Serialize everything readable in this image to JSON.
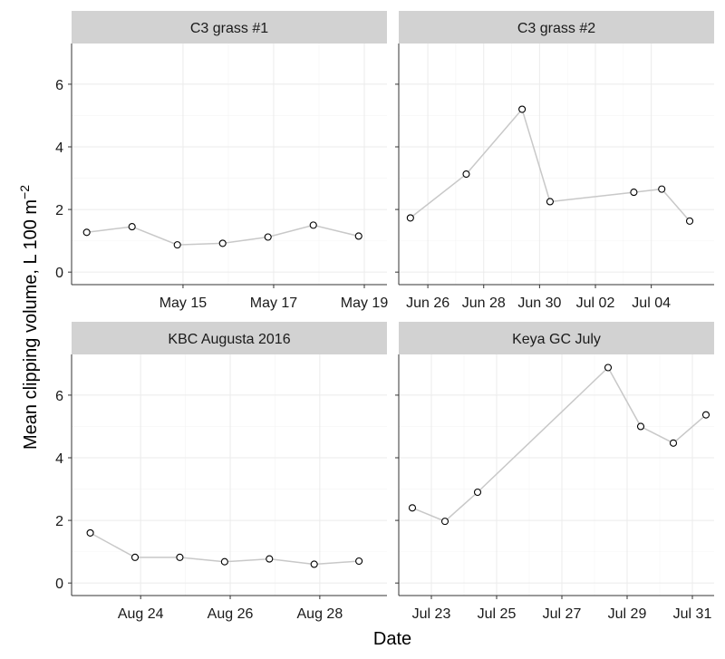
{
  "figure": {
    "ylabel_main": "Mean clipping volume, L 100 m",
    "ylabel_sup": "−2",
    "xlabel": "Date"
  },
  "style": {
    "strip_fill": "#d2d2d2",
    "line_color": "#c8c8c8",
    "grid_major": "#ebebeb",
    "grid_minor": "#f4f4f4",
    "marker_stroke": "#000000",
    "marker_fill": "#ffffff"
  },
  "chart_data": [
    {
      "type": "line",
      "title": "C3 grass #1",
      "x_type": "date",
      "xlim": [
        "2016-05-12T13:00",
        "2016-05-19T12:00"
      ],
      "ylim": [
        -0.4,
        7.3
      ],
      "yticks": [
        0,
        2,
        4,
        6
      ],
      "xticks": [
        {
          "date": "2016-05-15",
          "label": "May 15"
        },
        {
          "date": "2016-05-17",
          "label": "May 17"
        },
        {
          "date": "2016-05-19",
          "label": "May 19"
        }
      ],
      "x": [
        "2016-05-12T21:00",
        "2016-05-13T21:00",
        "2016-05-14T21:00",
        "2016-05-15T21:00",
        "2016-05-16T21:00",
        "2016-05-17T21:00",
        "2016-05-18T21:00"
      ],
      "values": [
        1.27,
        1.45,
        0.87,
        0.92,
        1.12,
        1.5,
        1.15
      ]
    },
    {
      "type": "line",
      "title": "C3 grass #2",
      "x_type": "date",
      "xlim": [
        "2016-06-24T23:00",
        "2016-07-06T06:00"
      ],
      "ylim": [
        -0.4,
        7.3
      ],
      "yticks": [
        0,
        2,
        4,
        6
      ],
      "xticks": [
        {
          "date": "2016-06-26",
          "label": "Jun 26"
        },
        {
          "date": "2016-06-28",
          "label": "Jun 28"
        },
        {
          "date": "2016-06-30",
          "label": "Jun 30"
        },
        {
          "date": "2016-07-02",
          "label": "Jul 02"
        },
        {
          "date": "2016-07-04",
          "label": "Jul 04"
        }
      ],
      "x": [
        "2016-06-25T09:00",
        "2016-06-27T09:00",
        "2016-06-29T09:00",
        "2016-06-30T09:00",
        "2016-07-03T09:00",
        "2016-07-04T09:00",
        "2016-07-05T09:00"
      ],
      "values": [
        1.73,
        3.13,
        5.2,
        2.25,
        2.55,
        2.65,
        1.63
      ]
    },
    {
      "type": "line",
      "title": "KBC Augusta 2016",
      "x_type": "date",
      "xlim": [
        "2016-08-22T11:00",
        "2016-08-29T12:00"
      ],
      "ylim": [
        -0.4,
        7.3
      ],
      "yticks": [
        0,
        2,
        4,
        6
      ],
      "xticks": [
        {
          "date": "2016-08-24",
          "label": "Aug 24"
        },
        {
          "date": "2016-08-26",
          "label": "Aug 26"
        },
        {
          "date": "2016-08-28",
          "label": "Aug 28"
        }
      ],
      "x": [
        "2016-08-22T21:00",
        "2016-08-23T21:00",
        "2016-08-24T21:00",
        "2016-08-25T21:00",
        "2016-08-26T21:00",
        "2016-08-27T21:00",
        "2016-08-28T21:00"
      ],
      "values": [
        1.6,
        0.82,
        0.82,
        0.68,
        0.77,
        0.6,
        0.7
      ]
    },
    {
      "type": "line",
      "title": "Keya GC July",
      "x_type": "date",
      "xlim": [
        "2016-07-22T00:00",
        "2016-07-31T16:00"
      ],
      "ylim": [
        -0.4,
        7.3
      ],
      "yticks": [
        0,
        2,
        4,
        6
      ],
      "xticks": [
        {
          "date": "2016-07-23",
          "label": "Jul 23"
        },
        {
          "date": "2016-07-25",
          "label": "Jul 25"
        },
        {
          "date": "2016-07-27",
          "label": "Jul 27"
        },
        {
          "date": "2016-07-29",
          "label": "Jul 29"
        },
        {
          "date": "2016-07-31",
          "label": "Jul 31"
        }
      ],
      "x": [
        "2016-07-22T10:00",
        "2016-07-23T10:00",
        "2016-07-24T10:00",
        "2016-07-28T10:00",
        "2016-07-29T10:00",
        "2016-07-30T10:00",
        "2016-07-31T10:00"
      ],
      "values": [
        2.4,
        1.97,
        2.9,
        6.88,
        5.0,
        4.47,
        5.37
      ]
    }
  ]
}
